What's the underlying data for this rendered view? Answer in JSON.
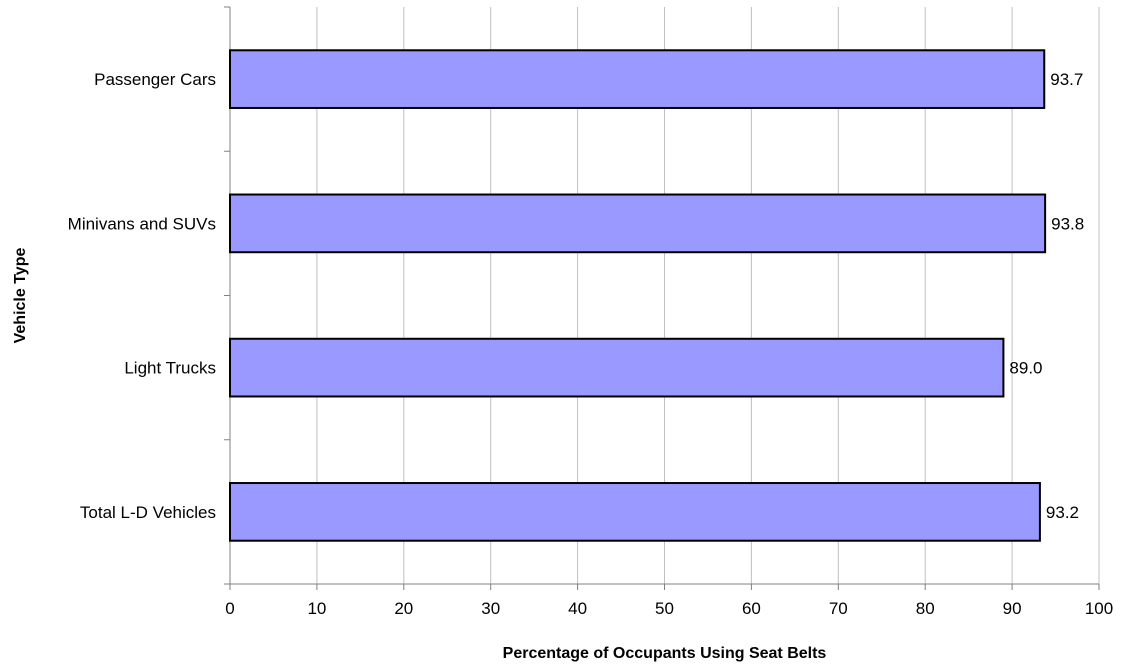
{
  "chart_data": {
    "type": "bar",
    "orientation": "horizontal",
    "categories": [
      "Passenger Cars",
      "Minivans and SUVs",
      "Light Trucks",
      "Total L-D Vehicles"
    ],
    "values": [
      93.7,
      93.8,
      89.0,
      93.2
    ],
    "value_labels": [
      "93.7",
      "93.8",
      "89.0",
      "93.2"
    ],
    "xlabel": "Percentage of Occupants Using Seat Belts",
    "ylabel": "Vehicle Type",
    "xlim": [
      0,
      100
    ],
    "xticks": [
      0,
      10,
      20,
      30,
      40,
      50,
      60,
      70,
      80,
      90,
      100
    ],
    "grid": true,
    "bar_color": "#9999ff",
    "bar_edge_color": "#000000",
    "gridline_color": "#c0c0c0"
  }
}
